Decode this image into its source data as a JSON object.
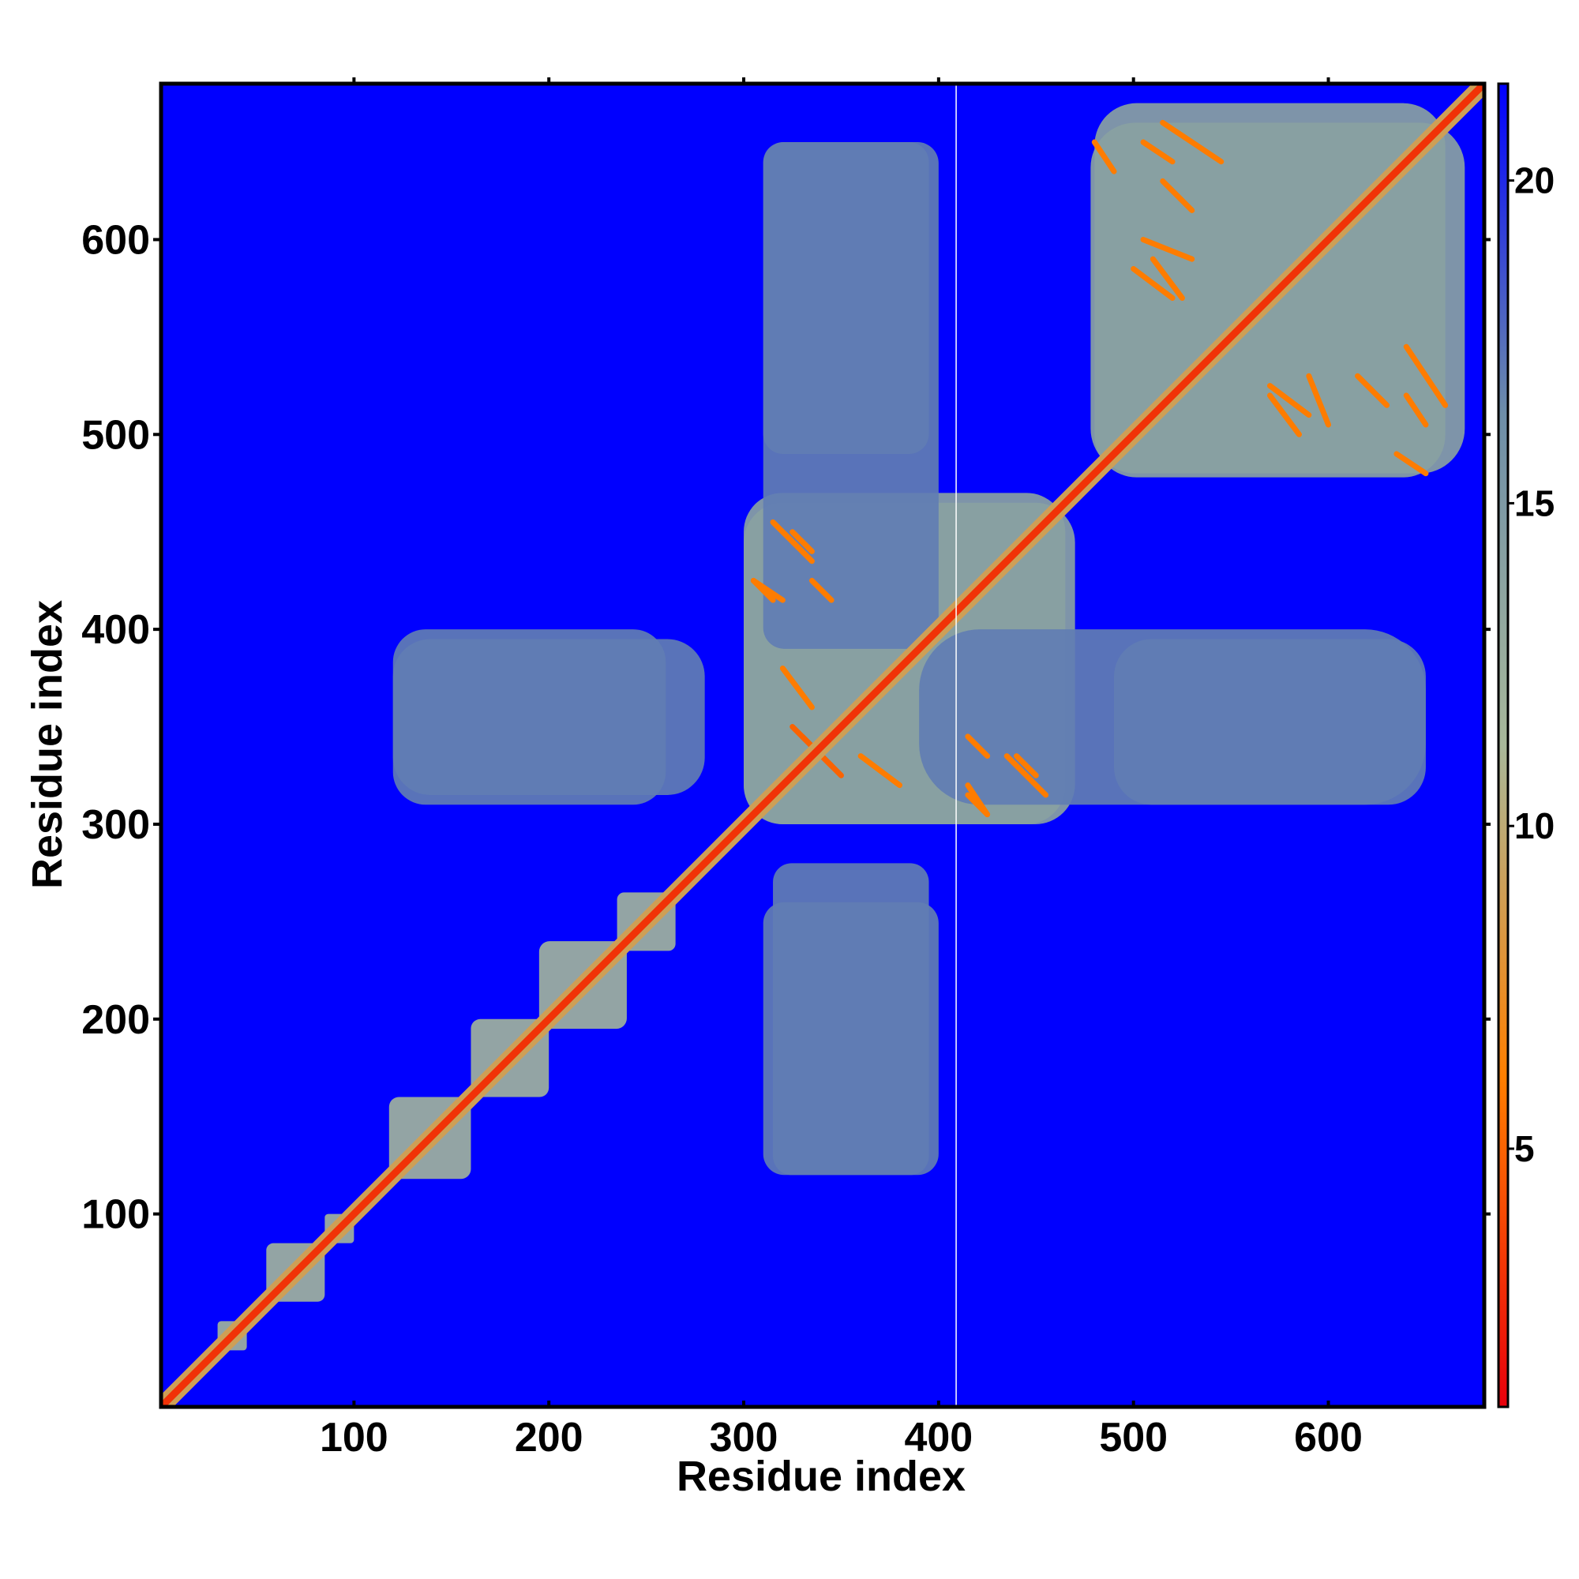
{
  "chart_data": {
    "type": "heatmap",
    "title": "",
    "xlabel": "Residue index",
    "ylabel": "Residue index",
    "xlim": [
      1,
      680
    ],
    "ylim": [
      1,
      680
    ],
    "x_ticks": [
      100,
      200,
      300,
      400,
      500,
      600
    ],
    "y_ticks": [
      100,
      200,
      300,
      400,
      500,
      600
    ],
    "colorbar": {
      "ticks": [
        5,
        10,
        15,
        20
      ],
      "range": [
        1,
        21.5
      ],
      "colors": [
        "#e8000b",
        "#ff7f00",
        "#a8b89a",
        "#6e8ea8",
        "#0000ff"
      ]
    },
    "background_value": 21.5,
    "background_color": "#0000ff",
    "gap_line_at_residue": 409,
    "diagonal": {
      "from": 1,
      "to": 680,
      "value": 3
    },
    "blocks": [
      {
        "x": [
          30,
          45
        ],
        "y": [
          30,
          45
        ],
        "value": 12
      },
      {
        "x": [
          55,
          85
        ],
        "y": [
          55,
          85
        ],
        "value": 12
      },
      {
        "x": [
          85,
          100
        ],
        "y": [
          85,
          100
        ],
        "value": 12
      },
      {
        "x": [
          118,
          160
        ],
        "y": [
          118,
          160
        ],
        "value": 12
      },
      {
        "x": [
          160,
          200
        ],
        "y": [
          160,
          200
        ],
        "value": 12
      },
      {
        "x": [
          195,
          240
        ],
        "y": [
          195,
          240
        ],
        "value": 12
      },
      {
        "x": [
          235,
          265
        ],
        "y": [
          235,
          265
        ],
        "value": 12
      },
      {
        "x": [
          300,
          465
        ],
        "y": [
          300,
          470
        ],
        "value": 14
      },
      {
        "x": [
          480,
          660
        ],
        "y": [
          478,
          670
        ],
        "value": 14
      },
      {
        "x": [
          120,
          280
        ],
        "y": [
          315,
          395
        ],
        "value": 17
      },
      {
        "x": [
          310,
          400
        ],
        "y": [
          120,
          260
        ],
        "value": 17
      },
      {
        "x": [
          310,
          400
        ],
        "y": [
          390,
          650
        ],
        "value": 17
      },
      {
        "x": [
          490,
          650
        ],
        "y": [
          310,
          395
        ],
        "value": 17
      }
    ],
    "contact_bands": [
      {
        "x": [
          315,
          335
        ],
        "y": [
          435,
          455
        ],
        "value": 6
      },
      {
        "x": [
          305,
          320
        ],
        "y": [
          415,
          425
        ],
        "value": 6
      },
      {
        "x": [
          330,
          350
        ],
        "y": [
          325,
          345
        ],
        "value": 5
      },
      {
        "x": [
          360,
          380
        ],
        "y": [
          320,
          335
        ],
        "value": 6
      },
      {
        "x": [
          415,
          425
        ],
        "y": [
          305,
          315
        ],
        "value": 6
      },
      {
        "x": [
          440,
          450
        ],
        "y": [
          325,
          335
        ],
        "value": 6
      },
      {
        "x": [
          415,
          425
        ],
        "y": [
          335,
          345
        ],
        "value": 6
      },
      {
        "x": [
          505,
          530
        ],
        "y": [
          590,
          600
        ],
        "value": 6
      },
      {
        "x": [
          500,
          520
        ],
        "y": [
          570,
          585
        ],
        "value": 6
      },
      {
        "x": [
          515,
          545
        ],
        "y": [
          640,
          660
        ],
        "value": 6
      },
      {
        "x": [
          570,
          590
        ],
        "y": [
          510,
          525
        ],
        "value": 6
      },
      {
        "x": [
          615,
          630
        ],
        "y": [
          515,
          530
        ],
        "value": 6
      },
      {
        "x": [
          640,
          650
        ],
        "y": [
          505,
          520
        ],
        "value": 6
      },
      {
        "x": [
          635,
          650
        ],
        "y": [
          480,
          490
        ],
        "value": 6
      }
    ]
  }
}
